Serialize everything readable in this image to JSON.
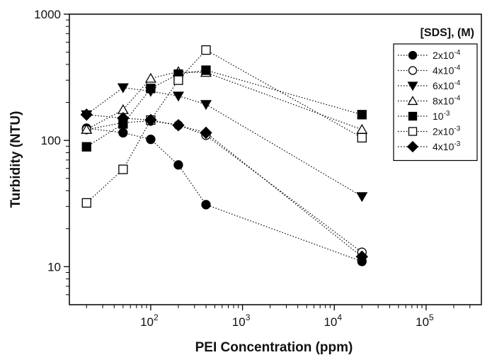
{
  "chart_data": {
    "type": "scatter",
    "title": "",
    "xlabel": "PEI Concentration (ppm)",
    "ylabel": "Turbidity (NTU)",
    "xscale": "log",
    "yscale": "log",
    "xlim": [
      13,
      400000
    ],
    "ylim": [
      5,
      1000
    ],
    "grid": false,
    "line_style": "dotted",
    "x_ticks": [
      {
        "value": 100,
        "base": "10",
        "exp": "2"
      },
      {
        "value": 1000,
        "base": "10",
        "exp": "3"
      },
      {
        "value": 10000,
        "base": "10",
        "exp": "4"
      },
      {
        "value": 100000,
        "base": "10",
        "exp": "5"
      }
    ],
    "y_ticks": [
      {
        "value": 10,
        "label": "10"
      },
      {
        "value": 100,
        "label": "100"
      },
      {
        "value": 1000,
        "label": "1000"
      }
    ],
    "legend": {
      "title": "[SDS], (M)",
      "placement": "top-right"
    },
    "series": [
      {
        "name": "2x10-4",
        "label_base": "2x10",
        "label_exp": "-4",
        "marker": "circle",
        "fill": "filled",
        "x": [
          20,
          50,
          100,
          200,
          400,
          20000
        ],
        "y": [
          125,
          115,
          102,
          64,
          31,
          11
        ]
      },
      {
        "name": "4x10-4",
        "label_base": "4x10",
        "label_exp": "-4",
        "marker": "circle",
        "fill": "open",
        "x": [
          20,
          50,
          100,
          200,
          400,
          20000
        ],
        "y": [
          122,
          138,
          143,
          132,
          110,
          13
        ]
      },
      {
        "name": "6x10-4",
        "label_base": "6x10",
        "label_exp": "-4",
        "marker": "triangle-down",
        "fill": "filled",
        "x": [
          20,
          50,
          100,
          200,
          400,
          20000
        ],
        "y": [
          160,
          262,
          245,
          225,
          193,
          36
        ]
      },
      {
        "name": "8x10-4",
        "label_base": "8x10",
        "label_exp": "-4",
        "marker": "triangle-up",
        "fill": "open",
        "x": [
          20,
          50,
          100,
          200,
          400,
          20000
        ],
        "y": [
          122,
          175,
          310,
          350,
          345,
          122
        ]
      },
      {
        "name": "10-3",
        "label_base": "10",
        "label_exp": "-3",
        "marker": "square",
        "fill": "filled",
        "x": [
          20,
          50,
          100,
          200,
          400,
          20000
        ],
        "y": [
          89,
          135,
          258,
          335,
          360,
          160
        ]
      },
      {
        "name": "2x10-3",
        "label_base": "2x10",
        "label_exp": "-3",
        "marker": "square",
        "fill": "open",
        "x": [
          20,
          50,
          100,
          200,
          400,
          20000
        ],
        "y": [
          32,
          59,
          145,
          300,
          520,
          105
        ]
      },
      {
        "name": "4x10-3",
        "label_base": "4x10",
        "label_exp": "-3",
        "marker": "diamond",
        "fill": "filled",
        "x": [
          20,
          50,
          100,
          200,
          400,
          20000
        ],
        "y": [
          160,
          150,
          145,
          132,
          115,
          12
        ]
      }
    ]
  }
}
